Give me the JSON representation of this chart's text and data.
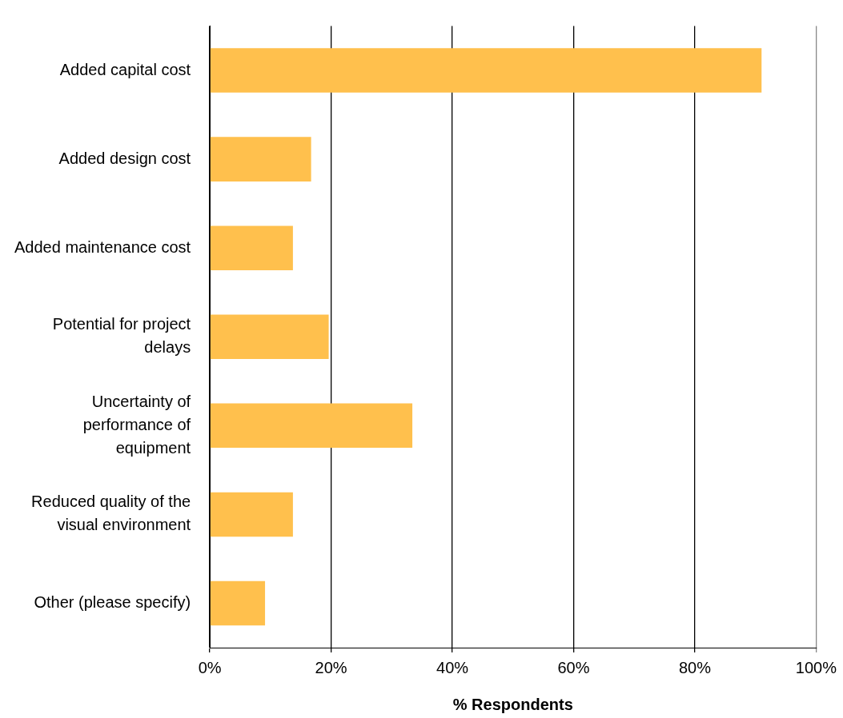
{
  "chart_data": {
    "type": "bar",
    "orientation": "horizontal",
    "xlabel": "% Respondents",
    "categories": [
      "Added capital cost",
      "Added design cost",
      "Added maintenance cost",
      "Potential for project delays",
      "Uncertainty of performance of equipment",
      "Reduced quality of the visual environment",
      "Other (please specify)"
    ],
    "values": [
      91,
      16.7,
      13.7,
      19.6,
      33.4,
      13.7,
      9.1
    ],
    "color": "#ffc04d",
    "xlim": [
      0,
      100
    ],
    "xticks": [
      {
        "value": 0,
        "label": "0%"
      },
      {
        "value": 20,
        "label": "20%"
      },
      {
        "value": 40,
        "label": "40%"
      },
      {
        "value": 60,
        "label": "60%"
      },
      {
        "value": 80,
        "label": "80%"
      },
      {
        "value": 100,
        "label": "100%"
      }
    ],
    "grid": "x",
    "legend": false
  }
}
